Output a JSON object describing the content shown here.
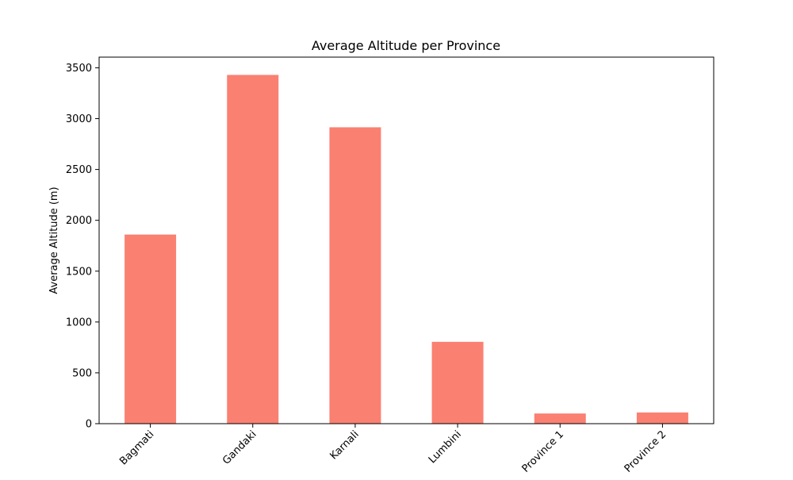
{
  "chart_data": {
    "type": "bar",
    "title": "Average Altitude per Province",
    "xlabel": "",
    "ylabel": "Average Altitude (m)",
    "categories": [
      "Bagmati",
      "Gandaki",
      "Karnali",
      "Lumbini",
      "Province 1",
      "Province 2"
    ],
    "values": [
      1860,
      3430,
      2915,
      805,
      100,
      110
    ],
    "ylim": [
      0,
      3605
    ],
    "yticks": [
      0,
      500,
      1000,
      1500,
      2000,
      2500,
      3000,
      3500
    ],
    "grid": false,
    "bar_color": "#fa8072"
  }
}
